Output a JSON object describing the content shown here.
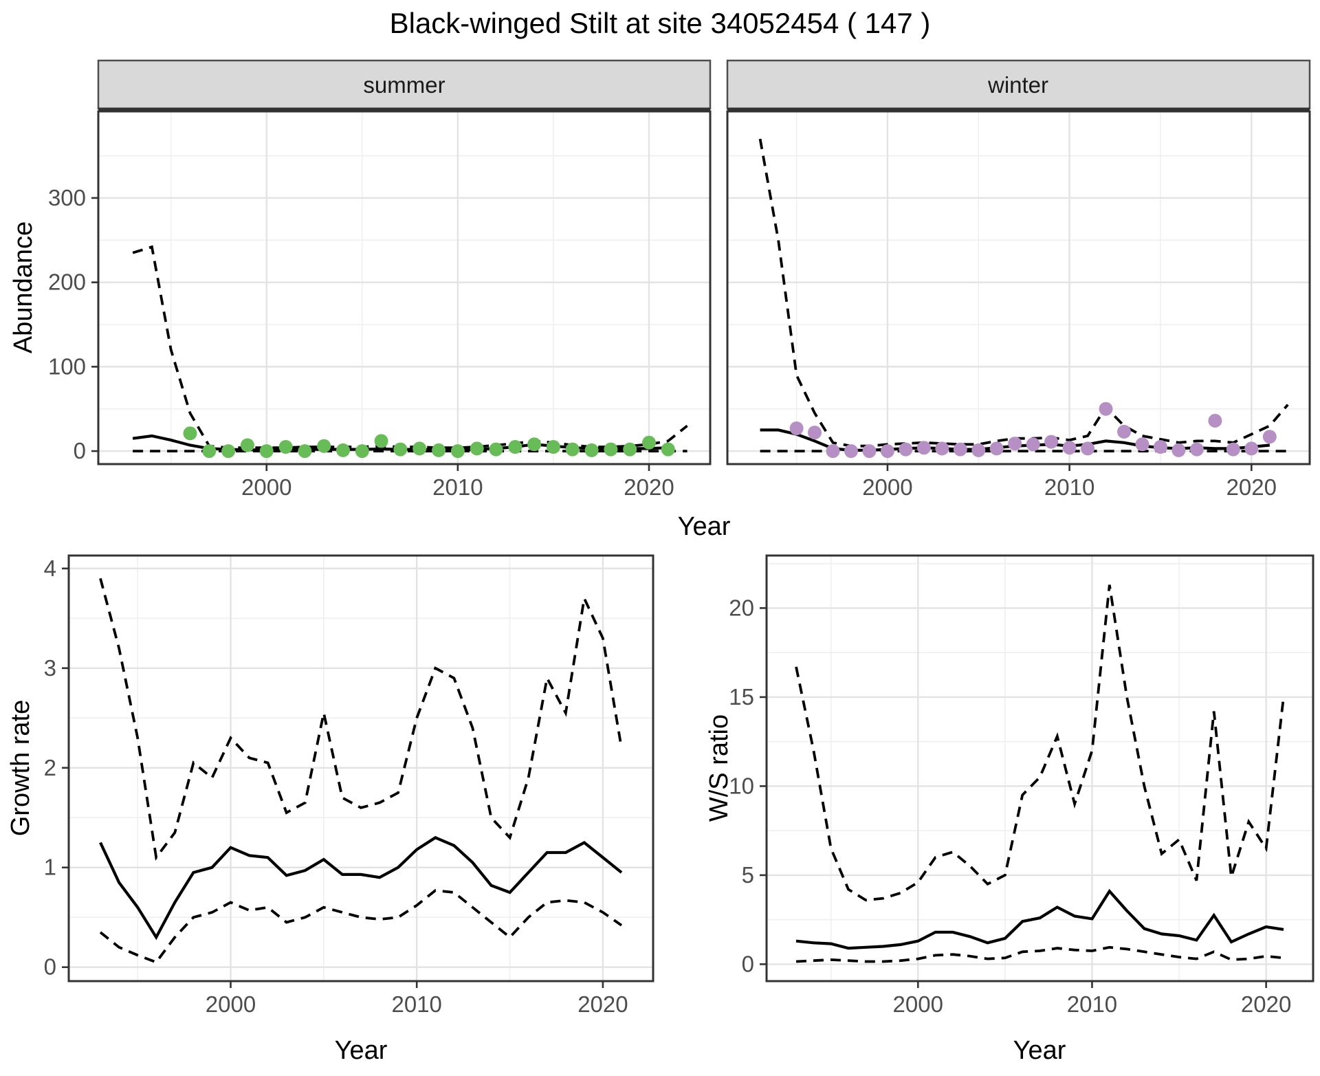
{
  "title": "Black-winged Stilt at site 34052454 ( 147 )",
  "facets": [
    {
      "label": "summer"
    },
    {
      "label": "winter"
    }
  ],
  "axes": {
    "abundance_label": "Abundance",
    "top_xlabel": "Year",
    "growth_ylabel": "Growth rate",
    "growth_xlabel": "Year",
    "ws_ylabel": "W/S ratio",
    "ws_xlabel": "Year"
  },
  "colors": {
    "summer_point": "#68bc57",
    "winter_point": "#b690c4",
    "strip_bg": "#d9d9d9",
    "strip_border": "#4d4d4d",
    "panel_border": "#333333",
    "grid_major": "#e3e3e3",
    "grid_minor": "#efefef",
    "axis_text": "#4d4d4d",
    "line": "#000000"
  },
  "chart_data": [
    {
      "id": "summer",
      "type": "line",
      "title": "summer",
      "xlabel": "Year",
      "ylabel": "Abundance",
      "x": [
        1993,
        1994,
        1995,
        1996,
        1997,
        1998,
        1999,
        2000,
        2001,
        2002,
        2003,
        2004,
        2005,
        2006,
        2007,
        2008,
        2009,
        2010,
        2011,
        2012,
        2013,
        2014,
        2015,
        2016,
        2017,
        2018,
        2019,
        2020,
        2021,
        2022
      ],
      "xlim": [
        1991.2,
        2023.2
      ],
      "ylim": [
        -15.4,
        402.6
      ],
      "xticks": [
        2000,
        2010,
        2020
      ],
      "yticks": [
        0,
        100,
        200,
        300
      ],
      "xgrid_minor": [
        1995,
        2005,
        2015
      ],
      "ygrid_minor": [
        50,
        150,
        250,
        350
      ],
      "show_yticks": true,
      "grid": true,
      "legend": "none",
      "series": [
        {
          "name": "lower_ci",
          "style": "dashed",
          "values": [
            0,
            0,
            0,
            0,
            0,
            0,
            0,
            0,
            0,
            0,
            0,
            0,
            0,
            0,
            0,
            0,
            0,
            0,
            0,
            0,
            0,
            0,
            0,
            0,
            0,
            0,
            0,
            0,
            0,
            0
          ]
        },
        {
          "name": "upper_ci",
          "style": "dashed",
          "values": [
            235,
            242,
            120,
            45,
            6,
            4,
            4,
            4,
            4,
            5,
            5,
            5,
            5,
            6,
            5,
            5,
            4,
            4,
            5,
            7,
            9,
            12,
            10,
            7,
            5,
            5,
            6,
            8,
            12,
            30
          ]
        },
        {
          "name": "fit",
          "style": "solid",
          "values": [
            15,
            18,
            13,
            7,
            3,
            2,
            1.5,
            1.5,
            1.5,
            2,
            2,
            2,
            2,
            2.5,
            2,
            2,
            1.5,
            1.5,
            2,
            3,
            5,
            8,
            6,
            4,
            3,
            3,
            3,
            3,
            4,
            null
          ]
        },
        {
          "name": "observed",
          "style": "points",
          "color": "#68bc57",
          "values": [
            null,
            null,
            null,
            21,
            0,
            0,
            7,
            0,
            5,
            0,
            6,
            1,
            0,
            12,
            2,
            3,
            1,
            0,
            3,
            2,
            5,
            8,
            5,
            2,
            1,
            2,
            2,
            10,
            2,
            null
          ]
        }
      ]
    },
    {
      "id": "winter",
      "type": "line",
      "title": "winter",
      "xlabel": "Year",
      "ylabel": "Abundance",
      "x": [
        1993,
        1994,
        1995,
        1996,
        1997,
        1998,
        1999,
        2000,
        2001,
        2002,
        2003,
        2004,
        2005,
        2006,
        2007,
        2008,
        2009,
        2010,
        2011,
        2012,
        2013,
        2014,
        2015,
        2016,
        2017,
        2018,
        2019,
        2020,
        2021,
        2022
      ],
      "xlim": [
        1991.2,
        2023.2
      ],
      "ylim": [
        -15.4,
        402.6
      ],
      "xticks": [
        2000,
        2010,
        2020
      ],
      "yticks": [
        0,
        100,
        200,
        300
      ],
      "xgrid_minor": [
        1995,
        2005,
        2015
      ],
      "ygrid_minor": [
        50,
        150,
        250,
        350
      ],
      "show_yticks": false,
      "grid": true,
      "legend": "none",
      "series": [
        {
          "name": "lower_ci",
          "style": "dashed",
          "values": [
            0,
            0,
            0,
            0,
            0,
            0,
            0,
            0,
            0,
            0,
            0,
            0,
            0,
            0,
            0,
            0,
            0,
            0,
            0,
            0,
            0,
            0,
            0,
            0,
            0,
            0,
            0,
            0,
            0,
            0
          ]
        },
        {
          "name": "upper_ci",
          "style": "dashed",
          "values": [
            370,
            250,
            90,
            45,
            10,
            6,
            6,
            8,
            9,
            10,
            9,
            8,
            8,
            12,
            15,
            15,
            16,
            13,
            18,
            52,
            30,
            18,
            14,
            10,
            12,
            12,
            10,
            20,
            30,
            55
          ]
        },
        {
          "name": "fit",
          "style": "solid",
          "values": [
            25,
            25,
            20,
            12,
            3,
            1,
            1,
            2,
            3,
            4,
            3,
            2,
            2,
            4,
            6,
            7,
            8,
            6,
            8,
            12,
            10,
            6,
            4,
            3,
            4,
            3,
            3,
            5,
            7,
            null
          ]
        },
        {
          "name": "observed",
          "style": "points",
          "color": "#b690c4",
          "values": [
            null,
            null,
            27,
            22,
            0,
            0,
            0,
            0,
            2,
            4,
            3,
            2,
            1,
            3,
            9,
            8,
            11,
            4,
            3,
            50,
            23,
            8,
            5,
            1,
            2,
            36,
            2,
            3,
            17,
            null
          ]
        }
      ]
    },
    {
      "id": "growth",
      "type": "line",
      "title": "Growth rate",
      "xlabel": "Year",
      "ylabel": "Growth rate",
      "x": [
        1993,
        1994,
        1995,
        1996,
        1997,
        1998,
        1999,
        2000,
        2001,
        2002,
        2003,
        2004,
        2005,
        2006,
        2007,
        2008,
        2009,
        2010,
        2011,
        2012,
        2013,
        2014,
        2015,
        2016,
        2017,
        2018,
        2019,
        2020,
        2021
      ],
      "xlim": [
        1991.3,
        2022.7
      ],
      "ylim": [
        -0.14,
        4.13
      ],
      "xticks": [
        2000,
        2010,
        2020
      ],
      "yticks": [
        0,
        1,
        2,
        3,
        4
      ],
      "xgrid_minor": [
        1995,
        2005,
        2015
      ],
      "ygrid_minor": [
        0.5,
        1.5,
        2.5,
        3.5
      ],
      "show_yticks": true,
      "grid": true,
      "legend": "none",
      "series": [
        {
          "name": "lower_ci",
          "style": "dashed",
          "values": [
            0.35,
            0.2,
            0.12,
            0.05,
            0.3,
            0.5,
            0.55,
            0.65,
            0.57,
            0.6,
            0.45,
            0.5,
            0.6,
            0.55,
            0.5,
            0.48,
            0.5,
            0.62,
            0.77,
            0.75,
            0.6,
            0.45,
            0.3,
            0.5,
            0.65,
            0.67,
            0.65,
            0.55,
            0.42
          ]
        },
        {
          "name": "upper_ci",
          "style": "dashed",
          "values": [
            3.9,
            3.2,
            2.3,
            1.1,
            1.35,
            2.05,
            1.9,
            2.3,
            2.1,
            2.05,
            1.55,
            1.65,
            2.55,
            1.7,
            1.6,
            1.65,
            1.75,
            2.5,
            3.0,
            2.9,
            2.4,
            1.5,
            1.3,
            1.9,
            2.9,
            2.55,
            3.7,
            3.3,
            2.2
          ]
        },
        {
          "name": "fit",
          "style": "solid",
          "values": [
            1.25,
            0.85,
            0.6,
            0.3,
            0.65,
            0.95,
            1.0,
            1.2,
            1.12,
            1.1,
            0.92,
            0.97,
            1.08,
            0.93,
            0.93,
            0.9,
            1.0,
            1.18,
            1.3,
            1.22,
            1.05,
            0.82,
            0.75,
            0.95,
            1.15,
            1.15,
            1.25,
            1.1,
            0.95
          ]
        }
      ]
    },
    {
      "id": "ws",
      "type": "line",
      "title": "W/S ratio",
      "xlabel": "Year",
      "ylabel": "W/S ratio",
      "x": [
        1993,
        1994,
        1995,
        1996,
        1997,
        1998,
        1999,
        2000,
        2001,
        2002,
        2003,
        2004,
        2005,
        2006,
        2007,
        2008,
        2009,
        2010,
        2011,
        2012,
        2013,
        2014,
        2015,
        2016,
        2017,
        2018,
        2019,
        2020,
        2021
      ],
      "xlim": [
        1991.3,
        2022.7
      ],
      "ylim": [
        -0.95,
        22.95
      ],
      "xticks": [
        2000,
        2010,
        2020
      ],
      "yticks": [
        0,
        5,
        10,
        15,
        20
      ],
      "xgrid_minor": [
        1995,
        2005,
        2015
      ],
      "ygrid_minor": [
        2.5,
        7.5,
        12.5,
        17.5,
        22.5
      ],
      "show_yticks": true,
      "grid": true,
      "legend": "none",
      "series": [
        {
          "name": "lower_ci",
          "style": "dashed",
          "values": [
            0.15,
            0.2,
            0.25,
            0.2,
            0.15,
            0.15,
            0.2,
            0.3,
            0.5,
            0.55,
            0.45,
            0.3,
            0.35,
            0.7,
            0.75,
            0.9,
            0.8,
            0.75,
            0.95,
            0.85,
            0.7,
            0.55,
            0.4,
            0.3,
            0.7,
            0.25,
            0.3,
            0.45,
            0.35
          ]
        },
        {
          "name": "upper_ci",
          "style": "dashed",
          "values": [
            16.7,
            12.0,
            6.5,
            4.2,
            3.6,
            3.7,
            4.0,
            4.6,
            6.0,
            6.3,
            5.5,
            4.5,
            5.0,
            9.5,
            10.5,
            12.8,
            9.0,
            12.0,
            21.3,
            15.0,
            10.0,
            6.2,
            7.0,
            4.7,
            14.2,
            4.9,
            8.0,
            6.5,
            15.0
          ]
        },
        {
          "name": "fit",
          "style": "solid",
          "values": [
            1.3,
            1.2,
            1.15,
            0.9,
            0.95,
            1.0,
            1.1,
            1.3,
            1.8,
            1.8,
            1.55,
            1.2,
            1.45,
            2.4,
            2.6,
            3.2,
            2.7,
            2.55,
            4.1,
            3.0,
            2.0,
            1.7,
            1.6,
            1.35,
            2.75,
            1.25,
            1.7,
            2.1,
            1.95
          ]
        }
      ]
    }
  ]
}
